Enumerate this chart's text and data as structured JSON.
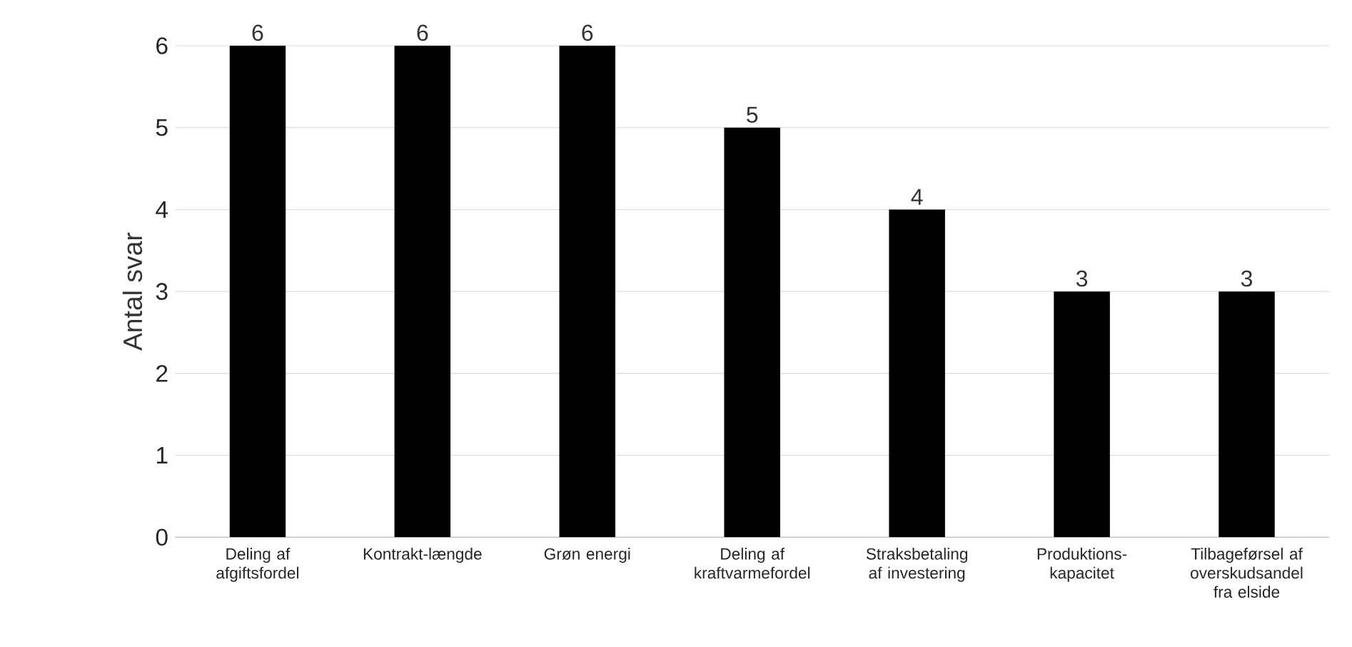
{
  "chart_data": {
    "type": "bar",
    "ylabel": "Antal svar",
    "categories": [
      "Deling af afgiftsfordel",
      "Kontrakt-længde",
      "Grøn energi",
      "Deling af kraftvarmefordel",
      "Straksbetaling af investering",
      "Produktions-kapacitet",
      "Tilbageførsel af overskudsandel fra elside"
    ],
    "values": [
      6,
      6,
      6,
      5,
      4,
      3,
      3
    ],
    "color": "#000000",
    "ylim": [
      0,
      6
    ],
    "yticks": [
      0,
      1,
      2,
      3,
      4,
      5,
      6
    ],
    "grid": "y",
    "data_labels": true
  }
}
